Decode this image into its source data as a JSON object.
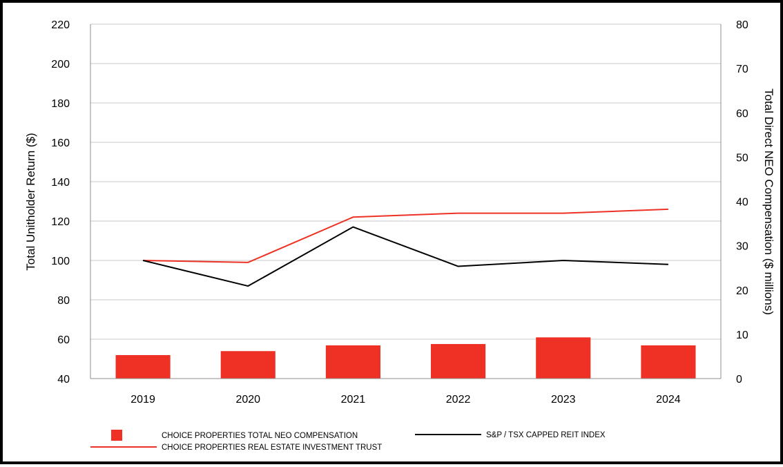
{
  "chart_data": {
    "type": "bar+line",
    "categories": [
      "2019",
      "2020",
      "2021",
      "2022",
      "2023",
      "2024"
    ],
    "left_axis": {
      "label": "Total Unitholder Return ($)",
      "min": 40,
      "max": 220,
      "ticks": [
        "40",
        "60",
        "80",
        "100",
        "120",
        "140",
        "160",
        "180",
        "200",
        "220"
      ]
    },
    "right_axis": {
      "label": "Total Direct NEO Compensation ($ millions)",
      "min": 0,
      "max": 80,
      "ticks": [
        "0",
        "10",
        "20",
        "30",
        "40",
        "50",
        "60",
        "70",
        "80"
      ]
    },
    "bar_series": {
      "name": "CHOICE PROPERTIES TOTAL NEO COMPENSATION",
      "axis": "right",
      "color": "#ee3124",
      "values": [
        5.3,
        6.2,
        7.5,
        7.8,
        9.3,
        7.5
      ]
    },
    "line_series": [
      {
        "name": "CHOICE PROPERTIES REAL ESTATE INVESTMENT TRUST",
        "axis": "left",
        "color": "#ee3124",
        "values": [
          100,
          99,
          122,
          124,
          124,
          126
        ]
      },
      {
        "name": "S&P / TSX CAPPED REIT INDEX",
        "axis": "left",
        "color": "#000000",
        "values": [
          100,
          87,
          117,
          97,
          100,
          98
        ]
      }
    ],
    "grid": "horizontal",
    "legend_position": "bottom"
  }
}
